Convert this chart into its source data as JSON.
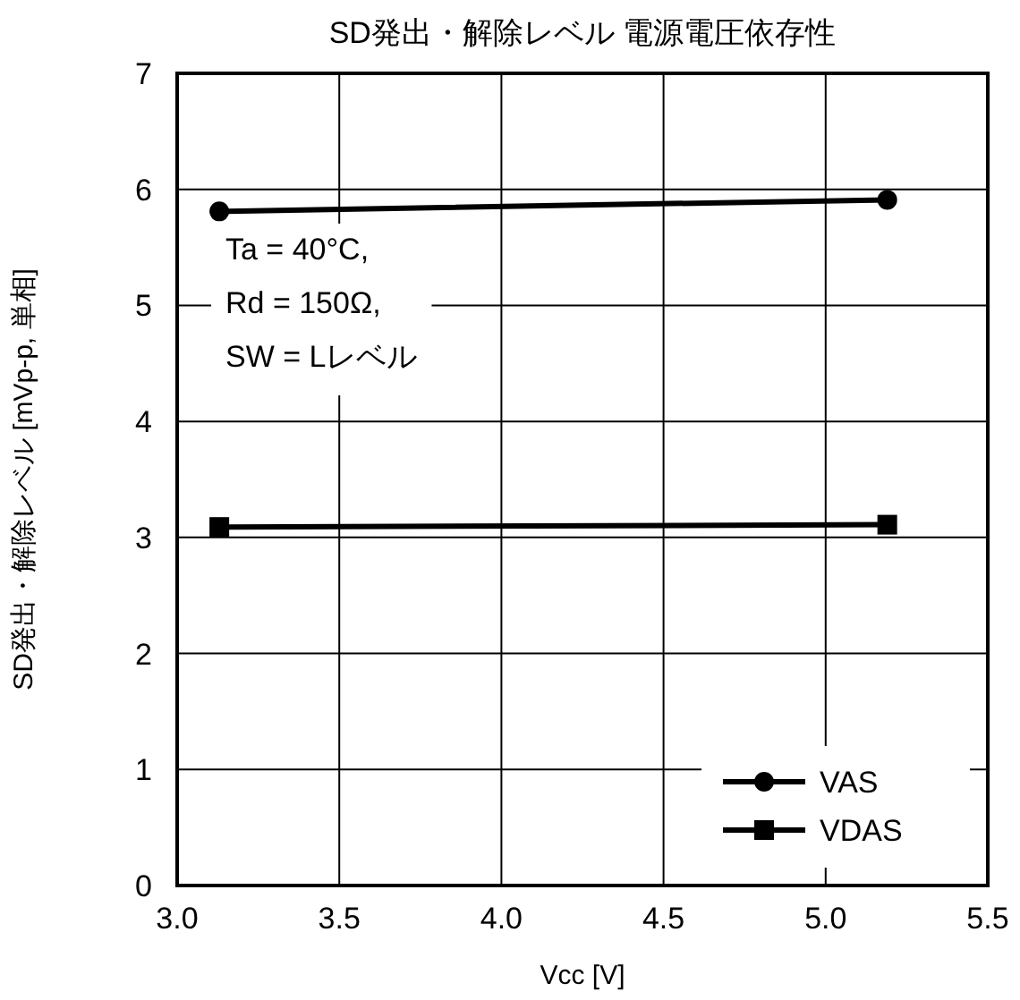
{
  "chart_data": {
    "type": "line",
    "title": "SD発出・解除レベル 電源電圧依存性",
    "xlabel": "Vcc [V]",
    "ylabel": "SD発出・解除レベル [mVp-p, 単相]",
    "x": [
      3.13,
      5.19
    ],
    "series": [
      {
        "name": "VAS",
        "color": "#000000",
        "marker": "circle",
        "values": [
          5.81,
          5.91
        ]
      },
      {
        "name": "VDAS",
        "color": "#000000",
        "marker": "square",
        "values": [
          3.09,
          3.11
        ]
      }
    ],
    "xlim": [
      3.0,
      5.5
    ],
    "xticks": [
      {
        "value": 3.0,
        "label": "3.0"
      },
      {
        "value": 3.5,
        "label": "3.5"
      },
      {
        "value": 4.0,
        "label": "4.0"
      },
      {
        "value": 4.5,
        "label": "4.5"
      },
      {
        "value": 5.0,
        "label": "5.0"
      },
      {
        "value": 5.5,
        "label": "5.5"
      }
    ],
    "ylim": [
      0,
      7
    ],
    "yticks": [
      0,
      1,
      2,
      3,
      4,
      5,
      6,
      7
    ],
    "grid": true,
    "legend": "bottom right",
    "line_style": "solid",
    "annotations": [
      "Ta = 40°C,\nRd = 150Ω,\nSW = Lレベル"
    ]
  }
}
